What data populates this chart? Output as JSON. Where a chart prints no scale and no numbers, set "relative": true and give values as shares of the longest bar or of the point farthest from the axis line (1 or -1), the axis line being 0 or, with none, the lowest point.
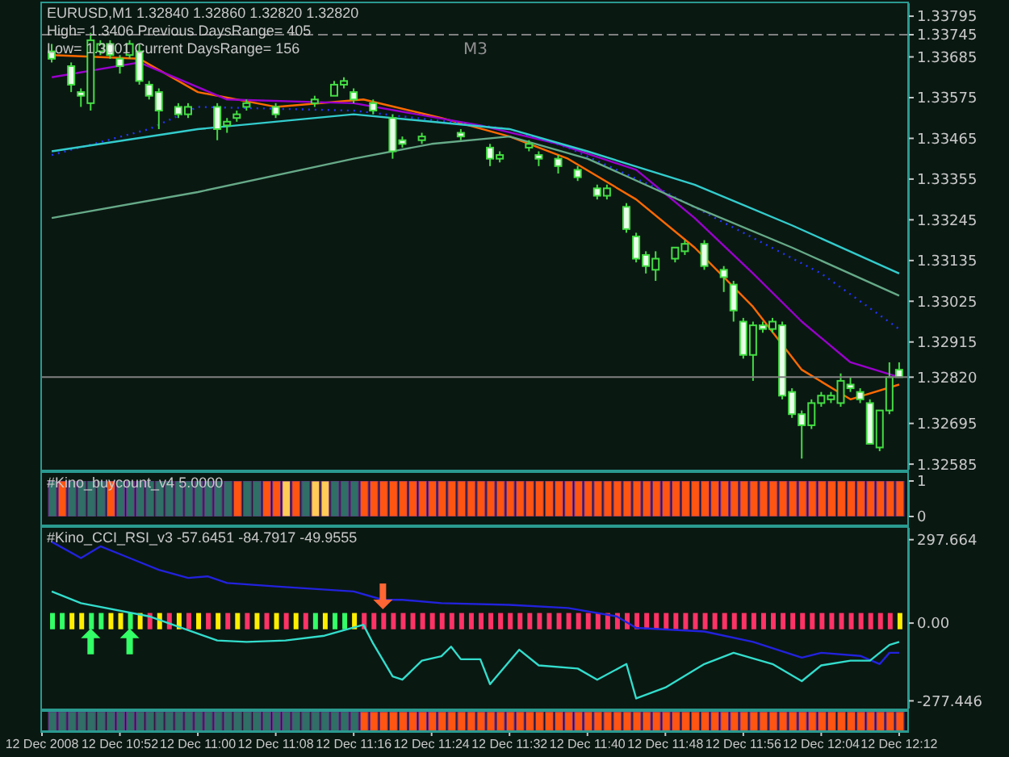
{
  "chart_data": [
    {
      "type": "candlestick",
      "title": "EURUSD,M1  1.32840 1.32860 1.32820 1.32820",
      "annotations": [
        "High= 1.3406 Previous DaysRange= 405",
        "Low= 1.3001 Current DaysRange= 156"
      ],
      "x": [
        "2008-12-12T10:45",
        "2008-12-12T10:47",
        "2008-12-12T10:48",
        "2008-12-12T10:49",
        "2008-12-12T10:50",
        "2008-12-12T10:51",
        "2008-12-12T10:52",
        "2008-12-12T10:53",
        "2008-12-12T10:54",
        "2008-12-12T10:55",
        "2008-12-12T10:56",
        "2008-12-12T10:58",
        "2008-12-12T10:59",
        "2008-12-12T11:02",
        "2008-12-12T11:03",
        "2008-12-12T11:04",
        "2008-12-12T11:05",
        "2008-12-12T11:08",
        "2008-12-12T11:12",
        "2008-12-12T11:14",
        "2008-12-12T11:15",
        "2008-12-12T11:16",
        "2008-12-12T11:18",
        "2008-12-12T11:20",
        "2008-12-12T11:21",
        "2008-12-12T11:23",
        "2008-12-12T11:27",
        "2008-12-12T11:30",
        "2008-12-12T11:31",
        "2008-12-12T11:34",
        "2008-12-12T11:35",
        "2008-12-12T11:37",
        "2008-12-12T11:39",
        "2008-12-12T11:41",
        "2008-12-12T11:42",
        "2008-12-12T11:44",
        "2008-12-12T11:45",
        "2008-12-12T11:46",
        "2008-12-12T11:47",
        "2008-12-12T11:49",
        "2008-12-12T11:50",
        "2008-12-12T11:52",
        "2008-12-12T11:54",
        "2008-12-12T11:55",
        "2008-12-12T11:56",
        "2008-12-12T11:57",
        "2008-12-12T11:58",
        "2008-12-12T11:59",
        "2008-12-12T12:00",
        "2008-12-12T12:01",
        "2008-12-12T12:02",
        "2008-12-12T12:03",
        "2008-12-12T12:04",
        "2008-12-12T12:05",
        "2008-12-12T12:06",
        "2008-12-12T12:07",
        "2008-12-12T12:08",
        "2008-12-12T12:09",
        "2008-12-12T12:10",
        "2008-12-12T12:11",
        "2008-12-12T12:12"
      ],
      "ohlc": [
        [
          1.337,
          1.3372,
          1.3367,
          1.3368
        ],
        [
          1.3366,
          1.3367,
          1.3359,
          1.3361
        ],
        [
          1.3359,
          1.336,
          1.3355,
          1.3358
        ],
        [
          1.3356,
          1.3375,
          1.3354,
          1.3373
        ],
        [
          1.337,
          1.3373,
          1.3369,
          1.3372
        ],
        [
          1.3372,
          1.3373,
          1.3368,
          1.3369
        ],
        [
          1.3368,
          1.3369,
          1.3364,
          1.3366
        ],
        [
          1.3369,
          1.3373,
          1.3368,
          1.3372
        ],
        [
          1.337,
          1.3372,
          1.3361,
          1.3362
        ],
        [
          1.3361,
          1.3362,
          1.3357,
          1.3358
        ],
        [
          1.3359,
          1.336,
          1.3349,
          1.3354
        ],
        [
          1.3355,
          1.3356,
          1.3352,
          1.3353
        ],
        [
          1.3353,
          1.3356,
          1.3352,
          1.3355
        ],
        [
          1.3355,
          1.3356,
          1.3346,
          1.3349
        ],
        [
          1.335,
          1.3352,
          1.3348,
          1.3351
        ],
        [
          1.3352,
          1.3354,
          1.3351,
          1.3353
        ],
        [
          1.3355,
          1.3357,
          1.3354,
          1.3356
        ],
        [
          1.3355,
          1.3356,
          1.3352,
          1.3353
        ],
        [
          1.3356,
          1.3358,
          1.3355,
          1.3357
        ],
        [
          1.3358,
          1.3362,
          1.3358,
          1.3361
        ],
        [
          1.3361,
          1.3363,
          1.336,
          1.3362
        ],
        [
          1.3359,
          1.336,
          1.3356,
          1.3357
        ],
        [
          1.3356,
          1.3357,
          1.3353,
          1.3354
        ],
        [
          1.3352,
          1.3353,
          1.3341,
          1.3343
        ],
        [
          1.3346,
          1.3347,
          1.3344,
          1.3345
        ],
        [
          1.3346,
          1.3348,
          1.3345,
          1.3347
        ],
        [
          1.3348,
          1.3349,
          1.3346,
          1.3347
        ],
        [
          1.3344,
          1.3345,
          1.3339,
          1.3341
        ],
        [
          1.3341,
          1.3343,
          1.334,
          1.3342
        ],
        [
          1.3344,
          1.3346,
          1.3343,
          1.3345
        ],
        [
          1.3342,
          1.3343,
          1.3339,
          1.3341
        ],
        [
          1.3341,
          1.3342,
          1.3337,
          1.3339
        ],
        [
          1.3338,
          1.3339,
          1.3335,
          1.3336
        ],
        [
          1.3333,
          1.3334,
          1.333,
          1.3331
        ],
        [
          1.3331,
          1.3334,
          1.333,
          1.3333
        ],
        [
          1.3328,
          1.3329,
          1.3321,
          1.3322
        ],
        [
          1.332,
          1.3321,
          1.3313,
          1.3314
        ],
        [
          1.3315,
          1.3316,
          1.331,
          1.3312
        ],
        [
          1.3311,
          1.3316,
          1.3308,
          1.3314
        ],
        [
          1.3314,
          1.3317,
          1.3313,
          1.3317
        ],
        [
          1.3316,
          1.3319,
          1.3315,
          1.3318
        ],
        [
          1.3318,
          1.3319,
          1.3311,
          1.3312
        ],
        [
          1.3311,
          1.3312,
          1.3305,
          1.3309
        ],
        [
          1.3307,
          1.3308,
          1.3297,
          1.33
        ],
        [
          1.3297,
          1.3298,
          1.3287,
          1.3288
        ],
        [
          1.3288,
          1.3297,
          1.3281,
          1.3296
        ],
        [
          1.3296,
          1.3297,
          1.3294,
          1.3295
        ],
        [
          1.3295,
          1.3298,
          1.3294,
          1.3297
        ],
        [
          1.3296,
          1.3297,
          1.3276,
          1.3277
        ],
        [
          1.3278,
          1.3279,
          1.3271,
          1.3272
        ],
        [
          1.3272,
          1.3273,
          1.326,
          1.3269
        ],
        [
          1.3269,
          1.3276,
          1.3268,
          1.3275
        ],
        [
          1.3275,
          1.3278,
          1.3274,
          1.3277
        ],
        [
          1.3276,
          1.3278,
          1.3275,
          1.3277
        ],
        [
          1.3275,
          1.3283,
          1.3274,
          1.3281
        ],
        [
          1.328,
          1.3282,
          1.3278,
          1.3279
        ],
        [
          1.3278,
          1.3279,
          1.3275,
          1.3276
        ],
        [
          1.3275,
          1.3276,
          1.3264,
          1.3264
        ],
        [
          1.3263,
          1.3273,
          1.3262,
          1.3273
        ],
        [
          1.3273,
          1.3286,
          1.3272,
          1.3282
        ],
        [
          1.3284,
          1.3286,
          1.3282,
          1.3282
        ]
      ],
      "series": [
        {
          "type": "line",
          "color": "#ff6a00",
          "x": [
            "2008-12-12T10:45",
            "2008-12-12T10:54",
            "2008-12-12T11:00",
            "2008-12-12T11:08",
            "2008-12-12T11:17",
            "2008-12-12T11:25",
            "2008-12-12T11:32",
            "2008-12-12T11:38",
            "2008-12-12T11:45",
            "2008-12-12T11:51",
            "2008-12-12T11:57",
            "2008-12-12T12:02",
            "2008-12-12T12:07",
            "2008-12-12T12:12"
          ],
          "values": [
            1.3369,
            1.3368,
            1.3359,
            1.3355,
            1.3357,
            1.3352,
            1.3347,
            1.3341,
            1.333,
            1.3317,
            1.3301,
            1.3284,
            1.3276,
            1.328
          ]
        },
        {
          "type": "line",
          "color": "#9900cc",
          "x": [
            "2008-12-12T10:45",
            "2008-12-12T10:54",
            "2008-12-12T11:03",
            "2008-12-12T11:16",
            "2008-12-12T11:29",
            "2008-12-12T11:37",
            "2008-12-12T11:45",
            "2008-12-12T11:51",
            "2008-12-12T11:57",
            "2008-12-12T12:02",
            "2008-12-12T12:07",
            "2008-12-12T12:12"
          ],
          "values": [
            1.3363,
            1.3367,
            1.3357,
            1.3356,
            1.335,
            1.3345,
            1.3338,
            1.3325,
            1.331,
            1.3297,
            1.3286,
            1.3282
          ]
        },
        {
          "type": "line",
          "color": "#2233ff",
          "line_style": "dotted",
          "x": [
            "2008-12-12T10:45",
            "2008-12-12T10:55",
            "2008-12-12T11:00",
            "2008-12-12T11:16",
            "2008-12-12T11:32",
            "2008-12-12T11:38",
            "2008-12-12T11:48",
            "2008-12-12T11:56",
            "2008-12-12T12:04",
            "2008-12-12T12:12"
          ],
          "values": [
            1.3342,
            1.3349,
            1.3355,
            1.3354,
            1.3349,
            1.3344,
            1.3332,
            1.3321,
            1.331,
            1.3295
          ]
        },
        {
          "type": "line",
          "color": "#33cccc",
          "x": [
            "2008-12-12T10:45",
            "2008-12-12T11:00",
            "2008-12-12T11:16",
            "2008-12-12T11:32",
            "2008-12-12T11:40",
            "2008-12-12T11:51",
            "2008-12-12T12:01",
            "2008-12-12T12:12"
          ],
          "values": [
            1.3343,
            1.3349,
            1.3353,
            1.3349,
            1.3343,
            1.3334,
            1.3323,
            1.331
          ]
        },
        {
          "type": "line",
          "color": "#66aa88",
          "x": [
            "2008-12-12T10:45",
            "2008-12-12T11:00",
            "2008-12-12T11:16",
            "2008-12-12T11:24",
            "2008-12-12T11:32",
            "2008-12-12T11:40",
            "2008-12-12T11:51",
            "2008-12-12T12:01",
            "2008-12-12T12:12"
          ],
          "values": [
            1.3325,
            1.3332,
            1.3341,
            1.3345,
            1.3347,
            1.3341,
            1.3328,
            1.3317,
            1.3304
          ]
        }
      ],
      "ref_lines": [
        {
          "axis": "y",
          "value": 1.33745,
          "label": "M3",
          "color": "#808080",
          "line_style": "dashed"
        },
        {
          "axis": "y",
          "value": 1.3282,
          "color": "#808080",
          "line_style": "solid"
        }
      ],
      "xlim": [
        "2008-12-12T10:44",
        "2008-12-12T12:13"
      ],
      "ylim": [
        1.3257,
        1.3383
      ],
      "yticks": [
        1.33795,
        1.33745,
        1.33685,
        1.33575,
        1.33465,
        1.33355,
        1.33245,
        1.33135,
        1.33025,
        1.32915,
        {
          "value": 1.3282,
          "label": "1.32820"
        },
        1.32695,
        1.32585
      ],
      "tick_labels": "y"
    },
    {
      "type": "bar",
      "title": "#Kino_buycount_v4 5.0000",
      "x": [
        "2008-12-12T10:45",
        "2008-12-12T10:46",
        "2008-12-12T10:47",
        "2008-12-12T10:48",
        "2008-12-12T10:49",
        "2008-12-12T10:50",
        "2008-12-12T10:51",
        "2008-12-12T10:52",
        "2008-12-12T10:53",
        "2008-12-12T10:54",
        "2008-12-12T10:55",
        "2008-12-12T10:56",
        "2008-12-12T10:57",
        "2008-12-12T10:58",
        "2008-12-12T10:59",
        "2008-12-12T11:00",
        "2008-12-12T11:01",
        "2008-12-12T11:02",
        "2008-12-12T11:03",
        "2008-12-12T11:04",
        "2008-12-12T11:05",
        "2008-12-12T11:06",
        "2008-12-12T11:07",
        "2008-12-12T11:08",
        "2008-12-12T11:09",
        "2008-12-12T11:10",
        "2008-12-12T11:11",
        "2008-12-12T11:12",
        "2008-12-12T11:13",
        "2008-12-12T11:14",
        "2008-12-12T11:15",
        "2008-12-12T11:16",
        "2008-12-12T11:17",
        "2008-12-12T11:18",
        "2008-12-12T11:19",
        "2008-12-12T11:20",
        "2008-12-12T11:21",
        "2008-12-12T11:22",
        "2008-12-12T11:23",
        "2008-12-12T11:24",
        "2008-12-12T11:25",
        "2008-12-12T11:26",
        "2008-12-12T11:27",
        "2008-12-12T11:28",
        "2008-12-12T11:29",
        "2008-12-12T11:30",
        "2008-12-12T11:31",
        "2008-12-12T11:32",
        "2008-12-12T11:33",
        "2008-12-12T11:34",
        "2008-12-12T11:35",
        "2008-12-12T11:36",
        "2008-12-12T11:37",
        "2008-12-12T11:38",
        "2008-12-12T11:39",
        "2008-12-12T11:40",
        "2008-12-12T11:41",
        "2008-12-12T11:42",
        "2008-12-12T11:43",
        "2008-12-12T11:44",
        "2008-12-12T11:45",
        "2008-12-12T11:46",
        "2008-12-12T11:47",
        "2008-12-12T11:48",
        "2008-12-12T11:49",
        "2008-12-12T11:50",
        "2008-12-12T11:51",
        "2008-12-12T11:52",
        "2008-12-12T11:53",
        "2008-12-12T11:54",
        "2008-12-12T11:55",
        "2008-12-12T11:56",
        "2008-12-12T11:57",
        "2008-12-12T11:58",
        "2008-12-12T11:59",
        "2008-12-12T12:00",
        "2008-12-12T12:01",
        "2008-12-12T12:02",
        "2008-12-12T12:03",
        "2008-12-12T12:04",
        "2008-12-12T12:05",
        "2008-12-12T12:06",
        "2008-12-12T12:07",
        "2008-12-12T12:08",
        "2008-12-12T12:09",
        "2008-12-12T12:10",
        "2008-12-12T12:11",
        "2008-12-12T12:12"
      ],
      "values": [
        1,
        1,
        1,
        1,
        1,
        1,
        1,
        1,
        1,
        1,
        1,
        1,
        1,
        1,
        1,
        1,
        1,
        1,
        1,
        1,
        1,
        1,
        1,
        1,
        1,
        1,
        1,
        1,
        1,
        1,
        1,
        1,
        1,
        1,
        1,
        1,
        1,
        1,
        1,
        1,
        1,
        1,
        1,
        1,
        1,
        1,
        1,
        1,
        1,
        1,
        1,
        1,
        1,
        1,
        1,
        1,
        1,
        1,
        1,
        1,
        1,
        1,
        1,
        1,
        1,
        1,
        1,
        1,
        1,
        1,
        1,
        1,
        1,
        1,
        1,
        1,
        1,
        1,
        1,
        1,
        1,
        1,
        1,
        1,
        1,
        1,
        1,
        1
      ],
      "colors": [
        "#2f6f66",
        "#ff5511",
        "#2f6f66",
        "#2f6f66",
        "#2f6f66",
        "#2f6f66",
        "#ff5511",
        "#2f6f66",
        "#2f6f66",
        "#2f6f66",
        "#2f6f66",
        "#2f6f66",
        "#2f6f66",
        "#2f6f66",
        "#2f6f66",
        "#2f6f66",
        "#2f6f66",
        "#2f6f66",
        "#2f6f66",
        "#ff5511",
        "#2f6f66",
        "#2f6f66",
        "#ff5511",
        "#ff5511",
        "#ffcc55",
        "#ff5511",
        "#2f6f66",
        "#ffcc55",
        "#ffcc55",
        "#2f6f66",
        "#2f6f66",
        "#2f6f66",
        "#ff5511",
        "#ff5511",
        "#ff5511",
        "#ff5511",
        "#ff5511",
        "#ff5511",
        "#ff5511",
        "#ff5511",
        "#ff5511",
        "#ff5511",
        "#ff5511",
        "#ff5511",
        "#ff5511",
        "#ff5511",
        "#ff5511",
        "#ff5511",
        "#ff5511",
        "#ff5511",
        "#ff5511",
        "#ff5511",
        "#ff5511",
        "#ff5511",
        "#ff5511",
        "#ff5511",
        "#ff5511",
        "#ff5511",
        "#ff5511",
        "#ff5511",
        "#ff5511",
        "#ff5511",
        "#ff5511",
        "#ff5511",
        "#ff5511",
        "#ff5511",
        "#ff5511",
        "#ff5511",
        "#ff5511",
        "#ff5511",
        "#ff5511",
        "#ff5511",
        "#ff5511",
        "#ff5511",
        "#ff5511",
        "#ff5511",
        "#ff5511",
        "#ff5511",
        "#ff5511",
        "#ff5511",
        "#ff5511",
        "#ff5511",
        "#ff5511",
        "#ff5511",
        "#ff5511",
        "#ff5511",
        "#ff5511",
        "#ff5511"
      ],
      "xlim": [
        "2008-12-12T10:44",
        "2008-12-12T12:13"
      ],
      "ylim": [
        0,
        1
      ],
      "yticks": [
        0,
        1
      ],
      "tick_labels": "y"
    },
    {
      "type": "line",
      "title": "#Kino_CCI_RSI_v3 -57.6451 -84.7917 -49.9555",
      "x": [
        "2008-12-12T10:45",
        "2008-12-12T10:46",
        "2008-12-12T10:47",
        "2008-12-12T10:48",
        "2008-12-12T10:49",
        "2008-12-12T10:50",
        "2008-12-12T10:51",
        "2008-12-12T10:52",
        "2008-12-12T10:53",
        "2008-12-12T10:54",
        "2008-12-12T10:55",
        "2008-12-12T10:56",
        "2008-12-12T10:57",
        "2008-12-12T10:58",
        "2008-12-12T10:59",
        "2008-12-12T11:00",
        "2008-12-12T11:01",
        "2008-12-12T11:02",
        "2008-12-12T11:03",
        "2008-12-12T11:04",
        "2008-12-12T11:05",
        "2008-12-12T11:06",
        "2008-12-12T11:07",
        "2008-12-12T11:08",
        "2008-12-12T11:09",
        "2008-12-12T11:10",
        "2008-12-12T11:11",
        "2008-12-12T11:12",
        "2008-12-12T11:13",
        "2008-12-12T11:14",
        "2008-12-12T11:15",
        "2008-12-12T11:16",
        "2008-12-12T11:17",
        "2008-12-12T11:18",
        "2008-12-12T11:19",
        "2008-12-12T11:20",
        "2008-12-12T11:21",
        "2008-12-12T11:22",
        "2008-12-12T11:23",
        "2008-12-12T11:24",
        "2008-12-12T11:25",
        "2008-12-12T11:26",
        "2008-12-12T11:27",
        "2008-12-12T11:28",
        "2008-12-12T11:29",
        "2008-12-12T11:30",
        "2008-12-12T11:31",
        "2008-12-12T11:32",
        "2008-12-12T11:33",
        "2008-12-12T11:34",
        "2008-12-12T11:35",
        "2008-12-12T11:36",
        "2008-12-12T11:37",
        "2008-12-12T11:38",
        "2008-12-12T11:39",
        "2008-12-12T11:40",
        "2008-12-12T11:41",
        "2008-12-12T11:42",
        "2008-12-12T11:43",
        "2008-12-12T11:44",
        "2008-12-12T11:45",
        "2008-12-12T11:46",
        "2008-12-12T11:47",
        "2008-12-12T11:48",
        "2008-12-12T11:49",
        "2008-12-12T11:50",
        "2008-12-12T11:51",
        "2008-12-12T11:52",
        "2008-12-12T11:53",
        "2008-12-12T11:54",
        "2008-12-12T11:55",
        "2008-12-12T11:56",
        "2008-12-12T11:57",
        "2008-12-12T11:58",
        "2008-12-12T11:59",
        "2008-12-12T12:00",
        "2008-12-12T12:01",
        "2008-12-12T12:02",
        "2008-12-12T12:03",
        "2008-12-12T12:04",
        "2008-12-12T12:05",
        "2008-12-12T12:06",
        "2008-12-12T12:07",
        "2008-12-12T12:08",
        "2008-12-12T12:09",
        "2008-12-12T12:10",
        "2008-12-12T12:11",
        "2008-12-12T12:12"
      ],
      "series": [
        {
          "type": "bar",
          "base": [
            -22,
            -22,
            -22,
            -22,
            -22,
            -22,
            -22,
            -22,
            -22,
            -22,
            -22,
            -22,
            -22,
            -22,
            -22,
            -22,
            -22,
            -22,
            -22,
            -22,
            -22,
            -22,
            -22,
            -22,
            -22,
            -22,
            -22,
            -22,
            -22,
            -22,
            -22,
            -22,
            -22,
            -22,
            -22,
            -22,
            -22,
            -22,
            -22,
            -22,
            -22,
            -22,
            -22,
            -22,
            -22,
            -22,
            -22,
            -22,
            -22,
            -22,
            -22,
            -22,
            -22,
            -22,
            -22,
            -22,
            -22,
            -22,
            -22,
            -22,
            -22,
            -22,
            -22,
            -22,
            -22,
            -22,
            -22,
            -22,
            -22,
            -22,
            -22,
            -22,
            -22,
            -22,
            -22,
            -22,
            -22,
            -22,
            -22,
            -22,
            -22,
            -22,
            -22,
            -22,
            -22,
            -22,
            -22,
            -22
          ],
          "values": [
            58,
            58,
            58,
            58,
            58,
            58,
            58,
            58,
            58,
            58,
            58,
            58,
            58,
            58,
            58,
            58,
            58,
            58,
            58,
            58,
            58,
            58,
            58,
            58,
            58,
            58,
            58,
            58,
            58,
            58,
            58,
            58,
            58,
            58,
            58,
            58,
            58,
            58,
            58,
            58,
            58,
            58,
            58,
            58,
            58,
            58,
            58,
            58,
            58,
            58,
            58,
            58,
            58,
            58,
            58,
            58,
            58,
            58,
            58,
            58,
            58,
            58,
            58,
            58,
            58,
            58,
            58,
            58,
            58,
            58,
            58,
            58,
            58,
            58,
            58,
            58,
            58,
            58,
            58,
            58,
            58,
            58,
            58,
            58,
            58,
            58,
            58,
            58
          ],
          "colors": [
            "#33ff66",
            "#33ff66",
            "#ffee00",
            "#ffee00",
            "#33ff66",
            "#33ff66",
            "#ffee00",
            "#ffee00",
            "#33ff66",
            "#ffee00",
            "#ff3366",
            "#ffee00",
            "#ff3366",
            "#ffee00",
            "#ff3366",
            "#ffee00",
            "#ff3366",
            "#ffee00",
            "#ff3366",
            "#ffee00",
            "#ff3366",
            "#ffee00",
            "#ff3366",
            "#ffee00",
            "#ff3366",
            "#ffee00",
            "#ff3366",
            "#33ff66",
            "#ffee00",
            "#33ff66",
            "#33ff66",
            "#ffee00",
            "#ff3366",
            "#ff3366",
            "#ff3366",
            "#ff3366",
            "#ff3366",
            "#ff3366",
            "#ff3366",
            "#ff3366",
            "#ff3366",
            "#ff3366",
            "#ff3366",
            "#ff3366",
            "#ff3366",
            "#ff3366",
            "#ff3366",
            "#ff3366",
            "#ff3366",
            "#ff3366",
            "#ff3366",
            "#ff3366",
            "#ff3366",
            "#ff3366",
            "#ff3366",
            "#ff3366",
            "#ff3366",
            "#ff3366",
            "#ff3366",
            "#ff3366",
            "#ff3366",
            "#ff3366",
            "#ff3366",
            "#ff3366",
            "#ff3366",
            "#ff3366",
            "#ff3366",
            "#ff3366",
            "#ff3366",
            "#ff3366",
            "#ff3366",
            "#ff3366",
            "#ff3366",
            "#ff3366",
            "#ff3366",
            "#ff3366",
            "#ff3366",
            "#ff3366",
            "#ff3366",
            "#ff3366",
            "#ff3366",
            "#ff3366",
            "#ff3366",
            "#ff3366",
            "#ff3366",
            "#ff3366",
            "#ff3366",
            "#ffee00"
          ]
        },
        {
          "type": "line",
          "color": "#2222dd",
          "x": [
            "2008-12-12T10:45",
            "2008-12-12T10:48",
            "2008-12-12T10:50",
            "2008-12-12T10:53",
            "2008-12-12T10:56",
            "2008-12-12T10:59",
            "2008-12-12T11:01",
            "2008-12-12T11:03",
            "2008-12-12T11:08",
            "2008-12-12T11:16",
            "2008-12-12T11:19",
            "2008-12-12T11:21",
            "2008-12-12T11:25",
            "2008-12-12T11:32",
            "2008-12-12T11:38",
            "2008-12-12T11:43",
            "2008-12-12T11:45",
            "2008-12-12T11:52",
            "2008-12-12T11:57",
            "2008-12-12T12:02",
            "2008-12-12T12:04",
            "2008-12-12T12:08",
            "2008-12-12T12:10",
            "2008-12-12T12:11",
            "2008-12-12T12:12"
          ],
          "values": [
            290,
            232,
            274,
            232,
            190,
            161,
            167,
            143,
            131,
            113,
            83,
            83,
            71,
            65,
            54,
            24,
            -17,
            -30,
            -67,
            -123,
            -106,
            -117,
            -146,
            -106,
            -106
          ]
        },
        {
          "type": "line",
          "color": "#33ddcc",
          "x": [
            "2008-12-12T10:45",
            "2008-12-12T10:48",
            "2008-12-12T10:55",
            "2008-12-12T11:02",
            "2008-12-12T11:05",
            "2008-12-12T11:09",
            "2008-12-12T11:13",
            "2008-12-12T11:17",
            "2008-12-12T11:18",
            "2008-12-12T11:20",
            "2008-12-12T11:21",
            "2008-12-12T11:23",
            "2008-12-12T11:25",
            "2008-12-12T11:26",
            "2008-12-12T11:27",
            "2008-12-12T11:29",
            "2008-12-12T11:30",
            "2008-12-12T11:33",
            "2008-12-12T11:35",
            "2008-12-12T11:39",
            "2008-12-12T11:41",
            "2008-12-12T11:44",
            "2008-12-12T11:45",
            "2008-12-12T11:48",
            "2008-12-12T11:52",
            "2008-12-12T11:55",
            "2008-12-12T11:59",
            "2008-12-12T12:02",
            "2008-12-12T12:04",
            "2008-12-12T12:07",
            "2008-12-12T12:09",
            "2008-12-12T12:11",
            "2008-12-12T12:12"
          ],
          "values": [
            113,
            71,
            24,
            -62,
            -67,
            -62,
            -45,
            -6,
            -73,
            -190,
            -202,
            -134,
            -118,
            -84,
            -129,
            -129,
            -218,
            -95,
            -151,
            -162,
            -202,
            -146,
            -269,
            -230,
            -146,
            -106,
            -146,
            -207,
            -151,
            -134,
            -134,
            -78,
            -67
          ]
        },
        {
          "type": "scatter",
          "x": [
            "2008-12-12T10:49",
            "2008-12-12T10:53",
            "2008-12-12T11:19"
          ],
          "values": [
            -65,
            -65,
            95
          ],
          "colors": [
            "#33ff66",
            "#33ff66",
            "#ff6633"
          ]
        }
      ],
      "xlim": [
        "2008-12-12T10:44",
        "2008-12-12T12:13"
      ],
      "ylim": [
        -305,
        340
      ],
      "yticks": [
        297.664,
        {
          "value": 0,
          "label": "0.00"
        },
        -277.446
      ],
      "tick_labels": "y"
    },
    {
      "type": "bar",
      "relative": true,
      "x": [
        "2008-12-12T10:45",
        "2008-12-12T10:46",
        "2008-12-12T10:47",
        "2008-12-12T10:48",
        "2008-12-12T10:49",
        "2008-12-12T10:50",
        "2008-12-12T10:51",
        "2008-12-12T10:52",
        "2008-12-12T10:53",
        "2008-12-12T10:54",
        "2008-12-12T10:55",
        "2008-12-12T10:56",
        "2008-12-12T10:57",
        "2008-12-12T10:58",
        "2008-12-12T10:59",
        "2008-12-12T11:00",
        "2008-12-12T11:01",
        "2008-12-12T11:02",
        "2008-12-12T11:03",
        "2008-12-12T11:04",
        "2008-12-12T11:05",
        "2008-12-12T11:06",
        "2008-12-12T11:07",
        "2008-12-12T11:08",
        "2008-12-12T11:09",
        "2008-12-12T11:10",
        "2008-12-12T11:11",
        "2008-12-12T11:12",
        "2008-12-12T11:13",
        "2008-12-12T11:14",
        "2008-12-12T11:15",
        "2008-12-12T11:16",
        "2008-12-12T11:17",
        "2008-12-12T11:18",
        "2008-12-12T11:19",
        "2008-12-12T11:20",
        "2008-12-12T11:21",
        "2008-12-12T11:22",
        "2008-12-12T11:23",
        "2008-12-12T11:24",
        "2008-12-12T11:25",
        "2008-12-12T11:26",
        "2008-12-12T11:27",
        "2008-12-12T11:28",
        "2008-12-12T11:29",
        "2008-12-12T11:30",
        "2008-12-12T11:31",
        "2008-12-12T11:32",
        "2008-12-12T11:33",
        "2008-12-12T11:34",
        "2008-12-12T11:35",
        "2008-12-12T11:36",
        "2008-12-12T11:37",
        "2008-12-12T11:38",
        "2008-12-12T11:39",
        "2008-12-12T11:40",
        "2008-12-12T11:41",
        "2008-12-12T11:42",
        "2008-12-12T11:43",
        "2008-12-12T11:44",
        "2008-12-12T11:45",
        "2008-12-12T11:46",
        "2008-12-12T11:47",
        "2008-12-12T11:48",
        "2008-12-12T11:49",
        "2008-12-12T11:50",
        "2008-12-12T11:51",
        "2008-12-12T11:52",
        "2008-12-12T11:53",
        "2008-12-12T11:54",
        "2008-12-12T11:55",
        "2008-12-12T11:56",
        "2008-12-12T11:57",
        "2008-12-12T11:58",
        "2008-12-12T11:59",
        "2008-12-12T12:00",
        "2008-12-12T12:01",
        "2008-12-12T12:02",
        "2008-12-12T12:03",
        "2008-12-12T12:04",
        "2008-12-12T12:05",
        "2008-12-12T12:06",
        "2008-12-12T12:07",
        "2008-12-12T12:08",
        "2008-12-12T12:09",
        "2008-12-12T12:10",
        "2008-12-12T12:11",
        "2008-12-12T12:12"
      ],
      "values": [
        1,
        1,
        1,
        1,
        1,
        1,
        1,
        1,
        1,
        1,
        1,
        1,
        1,
        1,
        1,
        1,
        1,
        1,
        1,
        1,
        1,
        1,
        1,
        1,
        1,
        1,
        1,
        1,
        1,
        1,
        1,
        1,
        1,
        1,
        1,
        1,
        1,
        1,
        1,
        1,
        1,
        1,
        1,
        1,
        1,
        1,
        1,
        1,
        1,
        1,
        1,
        1,
        1,
        1,
        1,
        1,
        1,
        1,
        1,
        1,
        1,
        1,
        1,
        1,
        1,
        1,
        1,
        1,
        1,
        1,
        1,
        1,
        1,
        1,
        1,
        1,
        1,
        1,
        1,
        1,
        1,
        1,
        1,
        1,
        1,
        1,
        1,
        1
      ],
      "colors": [
        "#2f6f66",
        "#2f6f66",
        "#2f6f66",
        "#2f6f66",
        "#2f6f66",
        "#2f6f66",
        "#2f6f66",
        "#2f6f66",
        "#2f6f66",
        "#2f6f66",
        "#2f6f66",
        "#2f6f66",
        "#2f6f66",
        "#2f6f66",
        "#2f6f66",
        "#2f6f66",
        "#2f6f66",
        "#2f6f66",
        "#2f6f66",
        "#2f6f66",
        "#2f6f66",
        "#2f6f66",
        "#2f6f66",
        "#2f6f66",
        "#2f6f66",
        "#2f6f66",
        "#2f6f66",
        "#2f6f66",
        "#2f6f66",
        "#2f6f66",
        "#2f6f66",
        "#2f6f66",
        "#ff5511",
        "#ff5511",
        "#ff5511",
        "#ff5511",
        "#ff5511",
        "#ff5511",
        "#ff5511",
        "#ff5511",
        "#ff5511",
        "#ff5511",
        "#ff5511",
        "#ff5511",
        "#ff5511",
        "#ff5511",
        "#ff5511",
        "#ff5511",
        "#ff5511",
        "#ff5511",
        "#ff5511",
        "#ff5511",
        "#ff5511",
        "#ff5511",
        "#ff5511",
        "#ff5511",
        "#ff5511",
        "#ff5511",
        "#ff5511",
        "#ff5511",
        "#ff5511",
        "#ff5511",
        "#ff5511",
        "#ff5511",
        "#ff5511",
        "#ff5511",
        "#ff5511",
        "#ff5511",
        "#ff5511",
        "#ff5511",
        "#ff5511",
        "#ff5511",
        "#ff5511",
        "#ff5511",
        "#ff5511",
        "#ff5511",
        "#ff5511",
        "#ff5511",
        "#ff5511",
        "#ff5511",
        "#ff5511",
        "#ff5511",
        "#ff5511",
        "#ff5511",
        "#ff5511",
        "#ff5511",
        "#ff5511",
        "#ff5511"
      ],
      "xlim": [
        "2008-12-12T10:44",
        "2008-12-12T12:13"
      ],
      "xticks": [
        {
          "value": "2008-12-12T10:44",
          "label": "12 Dec 2008"
        },
        {
          "value": "2008-12-12T10:52",
          "label": "12 Dec 10:52"
        },
        {
          "value": "2008-12-12T11:00",
          "label": "12 Dec 11:00"
        },
        {
          "value": "2008-12-12T11:08",
          "label": "12 Dec 11:08"
        },
        {
          "value": "2008-12-12T11:16",
          "label": "12 Dec 11:16"
        },
        {
          "value": "2008-12-12T11:24",
          "label": "12 Dec 11:24"
        },
        {
          "value": "2008-12-12T11:32",
          "label": "12 Dec 11:32"
        },
        {
          "value": "2008-12-12T11:40",
          "label": "12 Dec 11:40"
        },
        {
          "value": "2008-12-12T11:48",
          "label": "12 Dec 11:48"
        },
        {
          "value": "2008-12-12T11:56",
          "label": "12 Dec 11:56"
        },
        {
          "value": "2008-12-12T12:04",
          "label": "12 Dec 12:04"
        },
        {
          "value": "2008-12-12T12:12",
          "label": "12 Dec 12:12"
        }
      ],
      "tick_labels": "x"
    }
  ]
}
